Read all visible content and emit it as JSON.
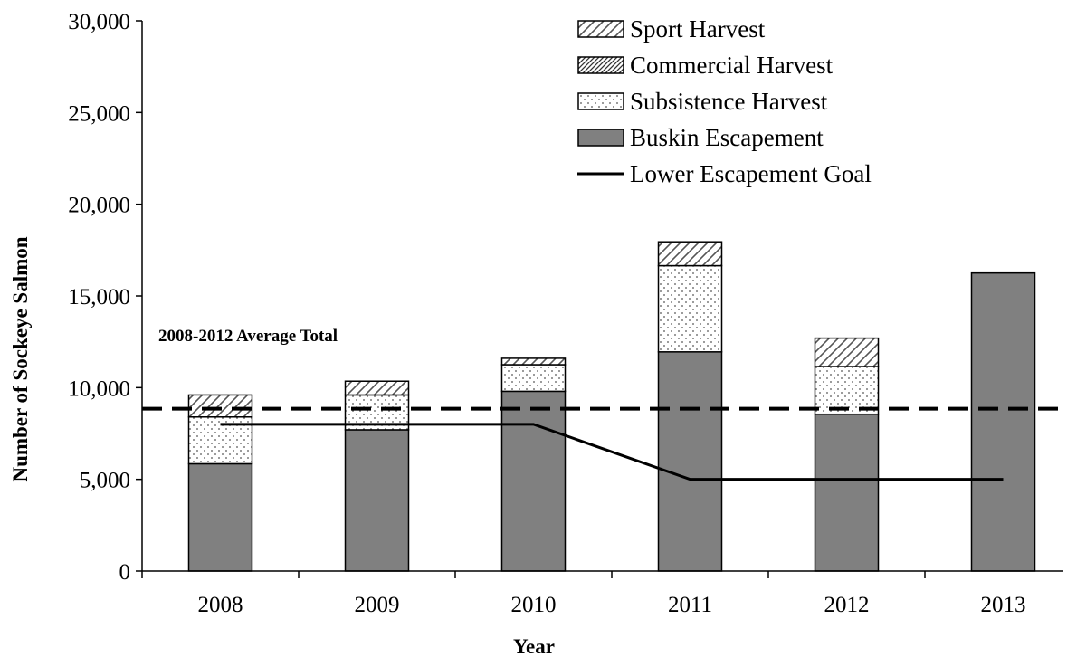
{
  "chart_data": {
    "type": "bar",
    "stacked": true,
    "categories": [
      "2008",
      "2009",
      "2010",
      "2011",
      "2012",
      "2013"
    ],
    "series": [
      {
        "name": "Buskin Escapement",
        "color": "#808080",
        "pattern": "solid",
        "values": [
          5850,
          7700,
          9800,
          11950,
          8550,
          16250
        ]
      },
      {
        "name": "Subsistence Harvest",
        "color": "#ffffff",
        "pattern": "dots",
        "values": [
          2550,
          1900,
          1450,
          4700,
          2600,
          0
        ]
      },
      {
        "name": "Commercial Harvest",
        "color": "#ffffff",
        "pattern": "dense-diagonal",
        "values": [
          0,
          0,
          0,
          0,
          0,
          0
        ]
      },
      {
        "name": "Sport Harvest",
        "color": "#ffffff",
        "pattern": "diagonal",
        "values": [
          1200,
          750,
          350,
          1300,
          1550,
          0
        ]
      }
    ],
    "lines": [
      {
        "name": "Lower Escapement Goal",
        "style": "solid",
        "values": [
          8000,
          8000,
          8000,
          5000,
          5000,
          5000
        ]
      },
      {
        "name": "2008-2012 Average Total",
        "style": "dashed",
        "value": 8850,
        "spans_full_width": true
      }
    ],
    "annotation": "2008-2012 Average Total",
    "xlabel": "Year",
    "ylabel": "Number of  Sockeye Salmon",
    "ylim": [
      0,
      30000
    ],
    "yticks": [
      0,
      5000,
      10000,
      15000,
      20000,
      25000,
      30000
    ],
    "ytick_labels": [
      "0",
      "5,000",
      "10,000",
      "15,000",
      "20,000",
      "25,000",
      "30,000"
    ],
    "legend_position": "top-center",
    "legend": [
      {
        "label": "Sport Harvest",
        "type": "swatch",
        "series": "Sport Harvest"
      },
      {
        "label": "Commercial Harvest",
        "type": "swatch",
        "series": "Commercial Harvest"
      },
      {
        "label": "Subsistence Harvest",
        "type": "swatch",
        "series": "Subsistence Harvest"
      },
      {
        "label": "Buskin Escapement",
        "type": "swatch",
        "series": "Buskin Escapement"
      },
      {
        "label": "Lower Escapement Goal",
        "type": "line"
      }
    ],
    "grid": false
  }
}
